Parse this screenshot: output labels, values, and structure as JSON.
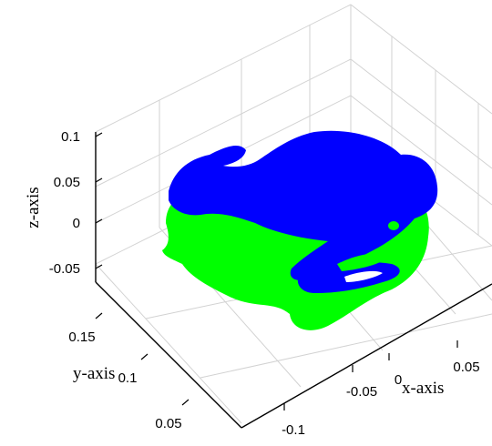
{
  "chart_data": {
    "type": "scatter",
    "view": "3d",
    "title": "",
    "xlabel": "x-axis",
    "ylabel": "y-axis",
    "zlabel": "z-axis",
    "x_ticks": [
      "-0.1",
      "-0.05",
      "0",
      "0.05"
    ],
    "y_ticks": [
      "0.05",
      "0.1",
      "0.15"
    ],
    "z_ticks": [
      "-0.05",
      "0",
      "0.05",
      "0.1"
    ],
    "xlim": [
      -0.12,
      0.08
    ],
    "ylim": [
      0.03,
      0.18
    ],
    "zlim": [
      -0.06,
      0.1
    ],
    "grid": true,
    "series": [
      {
        "color": "#0000ff",
        "description": "upper point cloud"
      },
      {
        "color": "#00ff00",
        "description": "lower point cloud"
      }
    ]
  }
}
